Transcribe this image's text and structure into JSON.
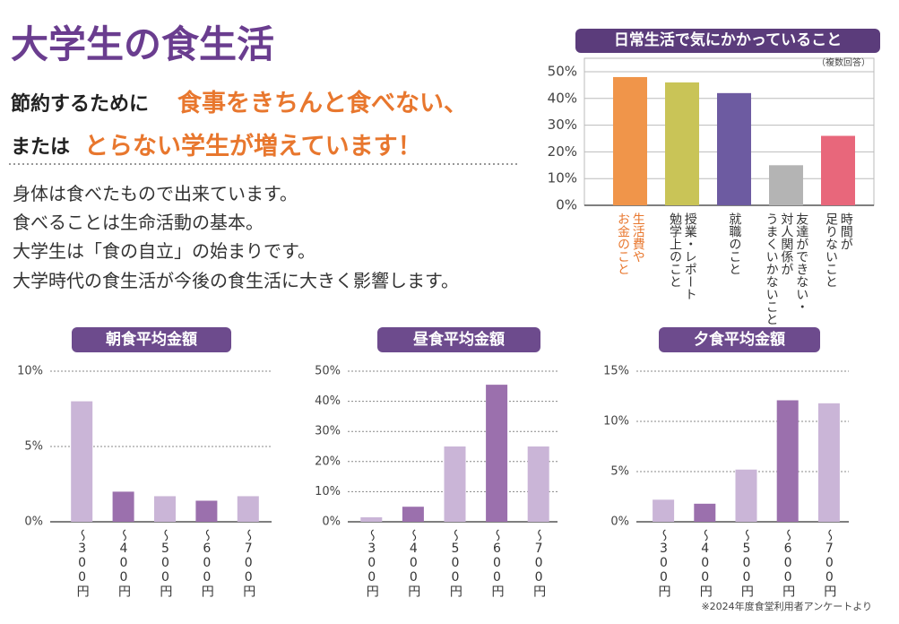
{
  "header": {
    "title": "大学生の食生活",
    "lead1": "節約するために",
    "lead1_em": "食事をきちんと食べない、",
    "lead2": "または",
    "lead2_em": "とらない学生が増えています！"
  },
  "body": [
    "身体は食べたもので出来ています。",
    "食べることは生命活動の基本。",
    "大学生は「食の自立」の始まりです。",
    "大学時代の食生活が今後の食生活に大きく影響します。"
  ],
  "footnote": "※2024年度食堂利用者アンケートより",
  "chart_data": [
    {
      "type": "bar",
      "title": "日常生活で気にかかっていること",
      "note": "（複数回答）",
      "categories": [
        "生活費や\nお金のこと",
        "授業・レポート\n勉学上のこと",
        "就職のこと",
        "友達ができない・\n対人関係が\nうまくいかないこと",
        "時間が\n足りないこと"
      ],
      "values": [
        48,
        46,
        42,
        15,
        26
      ],
      "colors": [
        "#f0954a",
        "#c9c457",
        "#6d5ba1",
        "#b4b4b4",
        "#e8677b"
      ],
      "category_label_colors": [
        "#e8772e",
        "#333333",
        "#333333",
        "#333333",
        "#333333"
      ],
      "ylim": [
        0,
        50
      ],
      "yticks": [
        {
          "value": 0,
          "label": "0%"
        },
        {
          "value": 10,
          "label": "10%"
        },
        {
          "value": 20,
          "label": "20%"
        },
        {
          "value": 30,
          "label": "30%"
        },
        {
          "value": 40,
          "label": "40%"
        },
        {
          "value": 50,
          "label": "50%"
        }
      ],
      "grid": true
    },
    {
      "type": "bar",
      "title": "朝食平均金額",
      "categories": [
        "～300円",
        "～400円",
        "～500円",
        "～600円",
        "～700円"
      ],
      "values": [
        8,
        2,
        1.7,
        1.4,
        1.7
      ],
      "colors": [
        "#cab5d7",
        "#9b70ad",
        "#cab5d7",
        "#9b70ad",
        "#cab5d7"
      ],
      "ylim": [
        0,
        10
      ],
      "yticks": [
        {
          "value": 0,
          "label": "0%"
        },
        {
          "value": 5,
          "label": "5%"
        },
        {
          "value": 10,
          "label": "10%"
        }
      ],
      "grid": true
    },
    {
      "type": "bar",
      "title": "昼食平均金額",
      "categories": [
        "～300円",
        "～400円",
        "～500円",
        "～600円",
        "～700円"
      ],
      "values": [
        1.5,
        5,
        25,
        45.5,
        25
      ],
      "colors": [
        "#cab5d7",
        "#9b70ad",
        "#cab5d7",
        "#9b70ad",
        "#cab5d7"
      ],
      "ylim": [
        0,
        50
      ],
      "yticks": [
        {
          "value": 0,
          "label": "0%"
        },
        {
          "value": 10,
          "label": "10%"
        },
        {
          "value": 20,
          "label": "20%"
        },
        {
          "value": 30,
          "label": "30%"
        },
        {
          "value": 40,
          "label": "40%"
        },
        {
          "value": 50,
          "label": "50%"
        }
      ],
      "grid": true
    },
    {
      "type": "bar",
      "title": "夕食平均金額",
      "categories": [
        "～300円",
        "～400円",
        "～500円",
        "～600円",
        "～700円"
      ],
      "values": [
        2.2,
        1.8,
        5.2,
        12.1,
        11.8
      ],
      "colors": [
        "#cab5d7",
        "#9b70ad",
        "#cab5d7",
        "#9b70ad",
        "#cab5d7"
      ],
      "ylim": [
        0,
        15
      ],
      "yticks": [
        {
          "value": 0,
          "label": "0%"
        },
        {
          "value": 5,
          "label": "5%"
        },
        {
          "value": 10,
          "label": "10%"
        },
        {
          "value": 15,
          "label": "15%"
        }
      ],
      "grid": true
    }
  ]
}
